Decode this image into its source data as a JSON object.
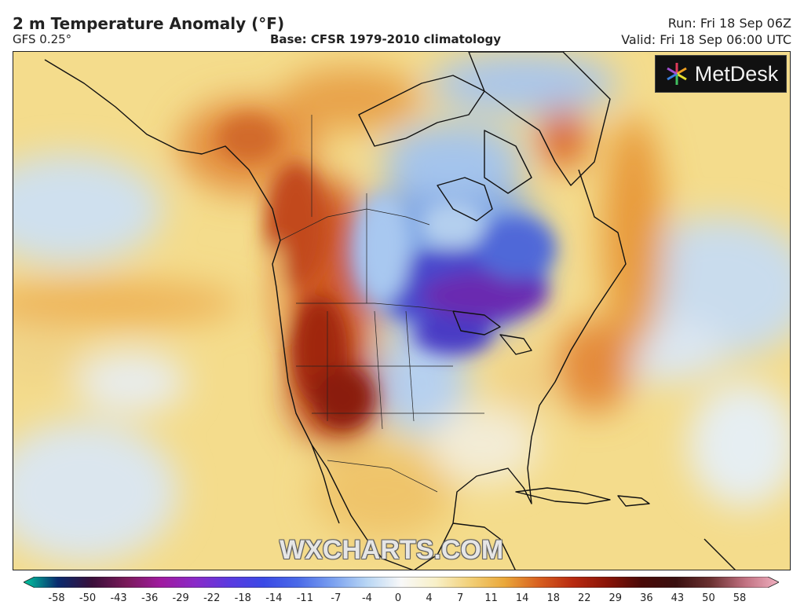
{
  "header": {
    "title": "2 m Temperature Anomaly (°F)",
    "model": "GFS 0.25°",
    "base": "Base: CFSR 1979-2010 climatology",
    "run": "Run: Fri 18 Sep 06Z",
    "valid": "Valid: Fri 18 Sep 06:00 UTC"
  },
  "logo": {
    "text": "MetDesk",
    "icon": "flower-icon"
  },
  "watermark": "WXCHARTS.COM",
  "legend": {
    "ticks": [
      "-58",
      "-50",
      "-43",
      "-36",
      "-29",
      "-22",
      "-18",
      "-14",
      "-11",
      "-7",
      "-4",
      "0",
      "4",
      "7",
      "11",
      "14",
      "18",
      "22",
      "29",
      "36",
      "43",
      "50",
      "58"
    ],
    "colors": [
      "#00c9a0",
      "#0a2a6e",
      "#3a0f3a",
      "#7a1a5a",
      "#a01aa0",
      "#8a2ac8",
      "#5a3ae0",
      "#3a4ae6",
      "#4a6ae8",
      "#7aa0f0",
      "#b8d6f4",
      "#f8f8f8",
      "#f8f0c8",
      "#f2d078",
      "#eaa83a",
      "#d86020",
      "#b82a10",
      "#8a1408",
      "#4a0a08",
      "#3a1010",
      "#6a3030",
      "#c07080",
      "#f0b0c0"
    ]
  }
}
